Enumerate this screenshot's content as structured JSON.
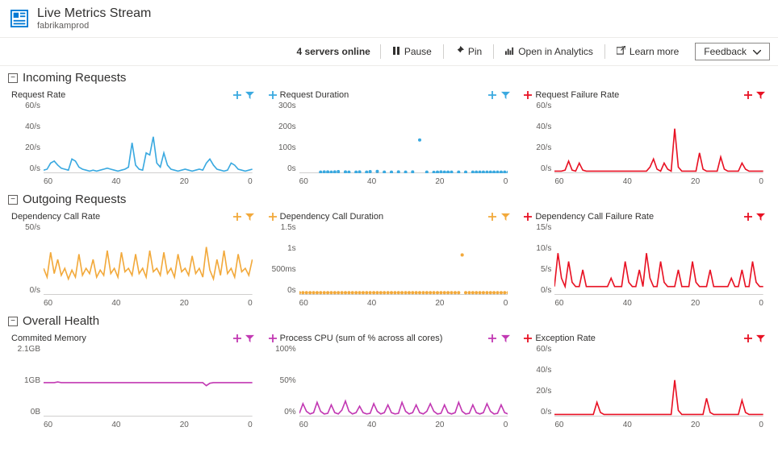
{
  "header": {
    "title": "Live Metrics Stream",
    "subtitle": "fabrikamprod"
  },
  "toolbar": {
    "status": "4 servers online",
    "pause": "Pause",
    "pin": "Pin",
    "analytics": "Open in Analytics",
    "learn": "Learn more",
    "feedback": "Feedback"
  },
  "colors": {
    "blue": "#3aa9e0",
    "red": "#e81123",
    "orange": "#f2a93b",
    "magenta": "#c239b3",
    "axis": "#a19f9d",
    "tick_text": "#605e5c"
  },
  "x_ticks": [
    "60",
    "40",
    "20",
    "0"
  ],
  "sections": [
    {
      "title": "Incoming Requests",
      "charts": [
        {
          "title": "Request Rate",
          "type": "line",
          "color": "#3aa9e0",
          "y_ticks": [
            "60/s",
            "40/s",
            "20/s",
            "0/s"
          ],
          "ymax": 70,
          "values": [
            3,
            4,
            10,
            12,
            8,
            5,
            4,
            3,
            14,
            12,
            6,
            4,
            3,
            2,
            3,
            2,
            3,
            4,
            5,
            4,
            3,
            2,
            3,
            4,
            6,
            30,
            8,
            4,
            3,
            20,
            18,
            36,
            10,
            6,
            20,
            8,
            4,
            3,
            2,
            3,
            4,
            3,
            2,
            3,
            4,
            3,
            10,
            14,
            8,
            4,
            3,
            2,
            3,
            10,
            8,
            4,
            3,
            2,
            3,
            4
          ]
        },
        {
          "title": "Request Duration",
          "type": "scatter",
          "color": "#3aa9e0",
          "y_ticks": [
            "300s",
            "200s",
            "100s",
            "0s"
          ],
          "ymax": 320,
          "values": [
            null,
            null,
            null,
            null,
            null,
            null,
            5,
            6,
            6,
            5,
            6,
            7,
            null,
            6,
            5,
            null,
            5,
            6,
            null,
            5,
            7,
            null,
            8,
            null,
            5,
            null,
            5,
            null,
            6,
            null,
            5,
            null,
            6,
            null,
            150,
            null,
            5,
            null,
            4,
            5,
            6,
            5,
            5,
            5,
            null,
            5,
            null,
            5,
            null,
            5,
            5,
            5,
            5,
            5,
            5,
            5,
            5,
            5,
            5,
            5
          ]
        },
        {
          "title": "Request Failure Rate",
          "type": "line",
          "color": "#e81123",
          "y_ticks": [
            "60/s",
            "40/s",
            "20/s",
            "0/s"
          ],
          "ymax": 70,
          "values": [
            2,
            2,
            2,
            3,
            12,
            3,
            2,
            10,
            3,
            2,
            2,
            2,
            2,
            2,
            2,
            2,
            2,
            2,
            2,
            2,
            2,
            2,
            2,
            2,
            2,
            2,
            2,
            6,
            14,
            4,
            2,
            10,
            4,
            2,
            44,
            6,
            2,
            2,
            2,
            2,
            2,
            20,
            4,
            2,
            2,
            2,
            2,
            16,
            4,
            2,
            2,
            2,
            2,
            10,
            4,
            2,
            2,
            2,
            2,
            2
          ]
        }
      ]
    },
    {
      "title": "Outgoing Requests",
      "charts": [
        {
          "title": "Dependency Call Rate",
          "type": "line",
          "color": "#f2a93b",
          "y_ticks": [
            "50/s",
            "0/s"
          ],
          "ymax": 80,
          "values": [
            30,
            20,
            48,
            24,
            40,
            22,
            30,
            18,
            28,
            20,
            46,
            22,
            30,
            24,
            40,
            20,
            28,
            22,
            50,
            24,
            30,
            20,
            48,
            26,
            30,
            22,
            46,
            24,
            30,
            20,
            50,
            26,
            30,
            22,
            48,
            24,
            30,
            20,
            46,
            26,
            30,
            22,
            44,
            24,
            30,
            20,
            54,
            28,
            18,
            40,
            22,
            50,
            24,
            30,
            20,
            46,
            26,
            30,
            22,
            40
          ]
        },
        {
          "title": "Dependency Call Duration",
          "type": "scatter",
          "color": "#f2a93b",
          "y_ticks": [
            "1.5s",
            "1s",
            "500ms",
            "0s"
          ],
          "ymax": 1.6,
          "values": [
            0.05,
            0.05,
            0.05,
            0.05,
            0.05,
            0.05,
            0.05,
            0.05,
            0.05,
            0.05,
            0.05,
            0.05,
            0.05,
            0.05,
            0.05,
            0.05,
            0.05,
            0.05,
            0.05,
            0.05,
            0.05,
            0.05,
            0.05,
            0.05,
            0.05,
            0.05,
            0.05,
            0.05,
            0.05,
            0.05,
            0.05,
            0.05,
            0.05,
            0.05,
            0.05,
            0.05,
            0.05,
            0.05,
            0.05,
            0.05,
            0.05,
            0.05,
            0.05,
            0.05,
            0.05,
            0.05,
            0.9,
            0.05,
            0.05,
            0.05,
            0.05,
            0.05,
            0.05,
            0.05,
            0.05,
            0.05,
            0.05,
            0.05,
            0.05,
            0.05
          ]
        },
        {
          "title": "Dependency Call Failure Rate",
          "type": "line",
          "color": "#e81123",
          "y_ticks": [
            "15/s",
            "10/s",
            "5/s",
            "0/s"
          ],
          "ymax": 17,
          "values": [
            2,
            10,
            4,
            2,
            8,
            3,
            2,
            2,
            6,
            2,
            2,
            2,
            2,
            2,
            2,
            2,
            4,
            2,
            2,
            2,
            8,
            3,
            2,
            2,
            6,
            2,
            10,
            4,
            2,
            2,
            8,
            3,
            2,
            2,
            2,
            6,
            2,
            2,
            2,
            8,
            3,
            2,
            2,
            2,
            6,
            2,
            2,
            2,
            2,
            2,
            4,
            2,
            2,
            6,
            2,
            2,
            8,
            3,
            2,
            2
          ]
        }
      ]
    },
    {
      "title": "Overall Health",
      "charts": [
        {
          "title": "Commited Memory",
          "type": "line",
          "color": "#c239b3",
          "y_ticks": [
            "2.1GB",
            "1GB",
            "0B"
          ],
          "ymax": 2.3,
          "values": [
            1.1,
            1.1,
            1.1,
            1.1,
            1.12,
            1.1,
            1.1,
            1.1,
            1.1,
            1.1,
            1.1,
            1.1,
            1.1,
            1.1,
            1.1,
            1.1,
            1.1,
            1.1,
            1.1,
            1.1,
            1.1,
            1.1,
            1.1,
            1.1,
            1.1,
            1.1,
            1.1,
            1.1,
            1.1,
            1.1,
            1.1,
            1.1,
            1.1,
            1.1,
            1.1,
            1.1,
            1.1,
            1.1,
            1.1,
            1.1,
            1.1,
            1.1,
            1.1,
            1.1,
            1.1,
            1.1,
            1.0,
            1.08,
            1.1,
            1.1,
            1.1,
            1.1,
            1.1,
            1.1,
            1.1,
            1.1,
            1.1,
            1.1,
            1.1,
            1.1
          ]
        },
        {
          "title": "Process CPU (sum of % across all cores)",
          "type": "line",
          "color": "#c239b3",
          "y_ticks": [
            "100%",
            "50%",
            "0%"
          ],
          "ymax": 110,
          "values": [
            5,
            20,
            8,
            4,
            6,
            22,
            8,
            4,
            5,
            18,
            6,
            4,
            10,
            24,
            8,
            4,
            6,
            16,
            6,
            4,
            5,
            20,
            8,
            4,
            6,
            18,
            6,
            4,
            5,
            22,
            8,
            4,
            6,
            18,
            6,
            4,
            8,
            20,
            8,
            4,
            5,
            18,
            6,
            4,
            6,
            22,
            8,
            4,
            5,
            18,
            6,
            4,
            6,
            20,
            8,
            4,
            5,
            18,
            6,
            4
          ]
        },
        {
          "title": "Exception Rate",
          "type": "line",
          "color": "#e81123",
          "y_ticks": [
            "60/s",
            "40/s",
            "20/s",
            "0/s"
          ],
          "ymax": 70,
          "values": [
            2,
            2,
            2,
            2,
            2,
            2,
            2,
            2,
            2,
            2,
            2,
            2,
            14,
            4,
            2,
            2,
            2,
            2,
            2,
            2,
            2,
            2,
            2,
            2,
            2,
            2,
            2,
            2,
            2,
            2,
            2,
            2,
            2,
            2,
            36,
            6,
            2,
            2,
            2,
            2,
            2,
            2,
            2,
            18,
            4,
            2,
            2,
            2,
            2,
            2,
            2,
            2,
            2,
            16,
            4,
            2,
            2,
            2,
            2,
            2
          ]
        }
      ]
    }
  ]
}
